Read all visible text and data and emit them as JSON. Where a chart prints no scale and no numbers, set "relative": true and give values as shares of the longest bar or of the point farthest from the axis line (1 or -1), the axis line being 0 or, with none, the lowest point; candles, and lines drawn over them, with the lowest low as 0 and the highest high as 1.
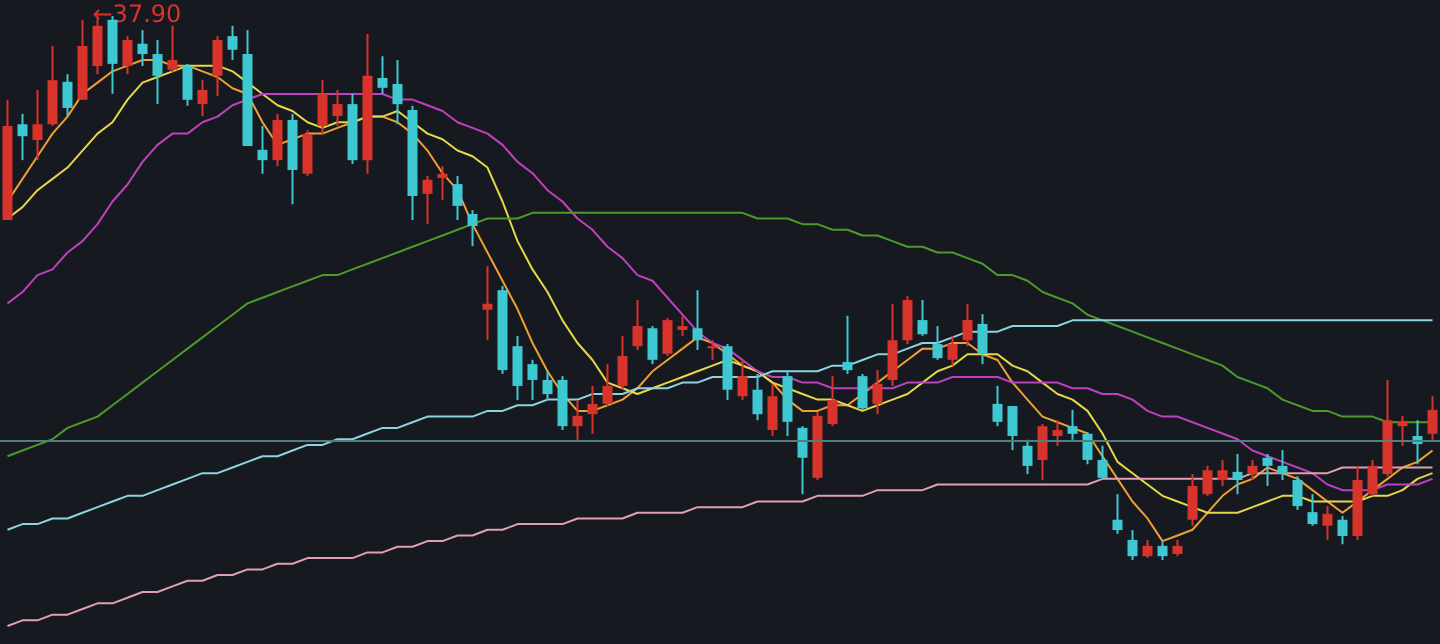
{
  "chart_data": [
    {
      "type": "candlestick",
      "relative": true,
      "categories": [
        null,
        null,
        null,
        null,
        null,
        null,
        null,
        null,
        null,
        null,
        null,
        null,
        null,
        null,
        null,
        null,
        null,
        null,
        null,
        null,
        null,
        null,
        null,
        null,
        null,
        null,
        null,
        null,
        null,
        null,
        null,
        null,
        null,
        null,
        null,
        null,
        null,
        null,
        null,
        null,
        null,
        null,
        null,
        null,
        null,
        null,
        null,
        null,
        null,
        null,
        null,
        null,
        null,
        null,
        null,
        null,
        null,
        null,
        null,
        null,
        null,
        null,
        null,
        null,
        null,
        null,
        null,
        null,
        null,
        null,
        null,
        null,
        null,
        null,
        null,
        null,
        null,
        null,
        null,
        null,
        null,
        null,
        null,
        null,
        null,
        null,
        null,
        null,
        null,
        null,
        null,
        null,
        null,
        null,
        null,
        null
      ],
      "ohlc": [
        [
          0.625,
          0.846,
          0.625,
          0.798
        ],
        [
          0.801,
          0.82,
          0.735,
          0.779
        ],
        [
          0.772,
          0.864,
          0.735,
          0.801
        ],
        [
          0.801,
          0.945,
          0.798,
          0.882
        ],
        [
          0.879,
          0.893,
          0.816,
          0.831
        ],
        [
          0.846,
          0.993,
          0.846,
          0.945
        ],
        [
          0.908,
          0.996,
          0.893,
          0.982
        ],
        [
          0.993,
          1,
          0.857,
          0.912
        ],
        [
          0.908,
          0.963,
          0.893,
          0.956
        ],
        [
          0.949,
          0.974,
          0.908,
          0.93
        ],
        [
          0.93,
          0.956,
          0.838,
          0.89
        ],
        [
          0.901,
          0.982,
          0.897,
          0.919
        ],
        [
          0.908,
          0.912,
          0.835,
          0.846
        ],
        [
          0.838,
          0.882,
          0.816,
          0.864
        ],
        [
          0.89,
          0.963,
          0.853,
          0.956
        ],
        [
          0.963,
          0.982,
          0.919,
          0.938
        ],
        [
          0.93,
          0.974,
          0.761,
          0.761
        ],
        [
          0.754,
          0.798,
          0.71,
          0.735
        ],
        [
          0.735,
          0.82,
          0.724,
          0.809
        ],
        [
          0.809,
          0.82,
          0.654,
          0.717
        ],
        [
          0.71,
          0.79,
          0.706,
          0.783
        ],
        [
          0.798,
          0.882,
          0.783,
          0.857
        ],
        [
          0.816,
          0.864,
          0.798,
          0.838
        ],
        [
          0.838,
          0.857,
          0.728,
          0.735
        ],
        [
          0.735,
          0.967,
          0.71,
          0.89
        ],
        [
          0.886,
          0.926,
          0.857,
          0.868
        ],
        [
          0.875,
          0.919,
          0.801,
          0.838
        ],
        [
          0.827,
          0.835,
          0.625,
          0.669
        ],
        [
          0.673,
          0.706,
          0.618,
          0.699
        ],
        [
          0.702,
          0.724,
          0.662,
          0.71
        ],
        [
          0.691,
          0.706,
          0.625,
          0.651
        ],
        [
          0.636,
          0.643,
          0.577,
          0.614
        ],
        [
          0.46,
          0.54,
          0.404,
          0.471
        ],
        [
          0.496,
          0.504,
          0.342,
          0.349
        ],
        [
          0.393,
          0.412,
          0.294,
          0.32
        ],
        [
          0.36,
          0.368,
          0.294,
          0.331
        ],
        [
          0.331,
          0.349,
          0.294,
          0.305
        ],
        [
          0.331,
          0.338,
          0.239,
          0.246
        ],
        [
          0.246,
          0.294,
          0.221,
          0.265
        ],
        [
          0.268,
          0.32,
          0.232,
          0.287
        ],
        [
          0.287,
          0.36,
          0.283,
          0.32
        ],
        [
          0.32,
          0.412,
          0.313,
          0.375
        ],
        [
          0.393,
          0.478,
          0.386,
          0.43
        ],
        [
          0.426,
          0.43,
          0.36,
          0.368
        ],
        [
          0.379,
          0.445,
          0.375,
          0.441
        ],
        [
          0.423,
          0.449,
          0.412,
          0.43
        ],
        [
          0.426,
          0.496,
          0.386,
          0.404
        ],
        [
          0.39,
          0.404,
          0.368,
          0.393
        ],
        [
          0.393,
          0.397,
          0.294,
          0.313
        ],
        [
          0.301,
          0.368,
          0.294,
          0.338
        ],
        [
          0.313,
          0.342,
          0.257,
          0.268
        ],
        [
          0.239,
          0.324,
          0.228,
          0.301
        ],
        [
          0.338,
          0.349,
          0.228,
          0.254
        ],
        [
          0.243,
          0.246,
          0.121,
          0.188
        ],
        [
          0.151,
          0.272,
          0.147,
          0.265
        ],
        [
          0.25,
          0.338,
          0.246,
          0.294
        ],
        [
          0.364,
          0.449,
          0.342,
          0.349
        ],
        [
          0.338,
          0.342,
          0.276,
          0.279
        ],
        [
          0.287,
          0.349,
          0.268,
          0.324
        ],
        [
          0.331,
          0.471,
          0.32,
          0.404
        ],
        [
          0.404,
          0.485,
          0.397,
          0.478
        ],
        [
          0.441,
          0.478,
          0.412,
          0.415
        ],
        [
          0.397,
          0.43,
          0.368,
          0.371
        ],
        [
          0.368,
          0.412,
          0.357,
          0.397
        ],
        [
          0.404,
          0.471,
          0.393,
          0.441
        ],
        [
          0.434,
          0.452,
          0.36,
          0.379
        ],
        [
          0.287,
          0.32,
          0.246,
          0.254
        ],
        [
          0.283,
          0.283,
          0.202,
          0.228
        ],
        [
          0.21,
          0.221,
          0.158,
          0.173
        ],
        [
          0.184,
          0.25,
          0.147,
          0.246
        ],
        [
          0.228,
          0.257,
          0.21,
          0.239
        ],
        [
          0.246,
          0.276,
          0.221,
          0.232
        ],
        [
          0.232,
          0.235,
          0.176,
          0.184
        ],
        [
          0.184,
          0.21,
          0.147,
          0.151
        ],
        [
          0.074,
          0.121,
          0.048,
          0.055
        ],
        [
          0.037,
          0.055,
          0,
          0.007
        ],
        [
          0.007,
          0.037,
          0.004,
          0.026
        ],
        [
          0.026,
          0.033,
          0,
          0.007
        ],
        [
          0.011,
          0.037,
          0.007,
          0.026
        ],
        [
          0.074,
          0.158,
          0.063,
          0.136
        ],
        [
          0.121,
          0.173,
          0.118,
          0.165
        ],
        [
          0.147,
          0.184,
          0.136,
          0.165
        ],
        [
          0.162,
          0.195,
          0.121,
          0.147
        ],
        [
          0.158,
          0.184,
          0.147,
          0.173
        ],
        [
          0.188,
          0.195,
          0.136,
          0.173
        ],
        [
          0.173,
          0.202,
          0.147,
          0.158
        ],
        [
          0.147,
          0.154,
          0.092,
          0.099
        ],
        [
          0.088,
          0.121,
          0.063,
          0.066
        ],
        [
          0.063,
          0.099,
          0.037,
          0.085
        ],
        [
          0.074,
          0.081,
          0.029,
          0.044
        ],
        [
          0.044,
          0.173,
          0.037,
          0.147
        ],
        [
          0.121,
          0.184,
          0.118,
          0.173
        ],
        [
          0.158,
          0.331,
          0.154,
          0.257
        ],
        [
          0.246,
          0.265,
          0.21,
          0.254
        ],
        [
          0.228,
          0.257,
          0.176,
          0.213
        ],
        [
          0.232,
          0.301,
          0.221,
          0.276
        ]
      ],
      "ref_lines": [
        {
          "axis": "y",
          "value": 0.224,
          "color": "#4f8080"
        }
      ],
      "annotations": [
        "←37.90"
      ]
    },
    {
      "type": "line",
      "relative": true,
      "categories": [
        null,
        null,
        null,
        null,
        null,
        null,
        null,
        null,
        null,
        null,
        null,
        null,
        null,
        null,
        null,
        null,
        null,
        null,
        null,
        null,
        null,
        null,
        null,
        null,
        null,
        null,
        null,
        null,
        null,
        null,
        null,
        null,
        null,
        null,
        null,
        null,
        null,
        null,
        null,
        null,
        null,
        null,
        null,
        null,
        null,
        null,
        null,
        null,
        null,
        null,
        null,
        null,
        null,
        null,
        null,
        null,
        null,
        null,
        null,
        null,
        null,
        null,
        null,
        null,
        null,
        null,
        null,
        null,
        null,
        null,
        null,
        null,
        null,
        null,
        null,
        null,
        null,
        null,
        null,
        null,
        null,
        null,
        null,
        null,
        null,
        null,
        null,
        null,
        null,
        null,
        null,
        null,
        null,
        null,
        null,
        null
      ],
      "series": [
        {
          "color": "#f0a030",
          "values": [
            0.75,
            0.79,
            0.83,
            0.87,
            0.9,
            0.94,
            0.96,
            0.98,
            0.99,
            1,
            1,
            0.99,
            0.99,
            0.98,
            0.97,
            0.95,
            0.94,
            0.89,
            0.85,
            0.86,
            0.87,
            0.87,
            0.88,
            0.89,
            0.9,
            0.9,
            0.89,
            0.87,
            0.84,
            0.8,
            0.77,
            0.71,
            0.66,
            0.61,
            0.56,
            0.5,
            0.45,
            0.41,
            0.38,
            0.38,
            0.39,
            0.4,
            0.42,
            0.45,
            0.47,
            0.49,
            0.51,
            0.5,
            0.48,
            0.46,
            0.45,
            0.43,
            0.4,
            0.38,
            0.38,
            0.39,
            0.39,
            0.41,
            0.43,
            0.45,
            0.47,
            0.49,
            0.49,
            0.5,
            0.5,
            0.48,
            0.47,
            0.43,
            0.4,
            0.37,
            0.36,
            0.35,
            0.34,
            0.3,
            0.26,
            0.22,
            0.19,
            0.15,
            0.16,
            0.17,
            0.2,
            0.23,
            0.25,
            0.26,
            0.28,
            0.27,
            0.26,
            0.24,
            0.22,
            0.2,
            0.22,
            0.24,
            0.26,
            0.28,
            0.29,
            0.31
          ]
        },
        {
          "color": "#e6d84a",
          "values": [
            0.72,
            0.74,
            0.77,
            0.79,
            0.81,
            0.84,
            0.87,
            0.89,
            0.93,
            0.96,
            0.97,
            0.98,
            0.99,
            0.99,
            0.99,
            0.98,
            0.96,
            0.94,
            0.92,
            0.91,
            0.89,
            0.88,
            0.89,
            0.89,
            0.9,
            0.9,
            0.91,
            0.89,
            0.87,
            0.86,
            0.84,
            0.83,
            0.81,
            0.75,
            0.68,
            0.63,
            0.59,
            0.54,
            0.5,
            0.47,
            0.43,
            0.42,
            0.41,
            0.42,
            0.43,
            0.44,
            0.45,
            0.46,
            0.47,
            0.46,
            0.45,
            0.43,
            0.42,
            0.41,
            0.4,
            0.4,
            0.39,
            0.38,
            0.39,
            0.4,
            0.41,
            0.43,
            0.45,
            0.46,
            0.48,
            0.48,
            0.48,
            0.46,
            0.45,
            0.43,
            0.41,
            0.4,
            0.38,
            0.34,
            0.29,
            0.27,
            0.25,
            0.23,
            0.22,
            0.21,
            0.2,
            0.2,
            0.2,
            0.21,
            0.22,
            0.23,
            0.23,
            0.22,
            0.22,
            0.22,
            0.22,
            0.23,
            0.23,
            0.24,
            0.26,
            0.27
          ]
        },
        {
          "color": "#c040c0",
          "values": [
            0.57,
            0.59,
            0.62,
            0.63,
            0.66,
            0.68,
            0.71,
            0.75,
            0.78,
            0.82,
            0.85,
            0.87,
            0.87,
            0.89,
            0.9,
            0.92,
            0.93,
            0.94,
            0.94,
            0.94,
            0.94,
            0.94,
            0.94,
            0.94,
            0.94,
            0.94,
            0.93,
            0.93,
            0.92,
            0.91,
            0.89,
            0.88,
            0.87,
            0.85,
            0.82,
            0.8,
            0.77,
            0.75,
            0.72,
            0.7,
            0.67,
            0.65,
            0.62,
            0.61,
            0.58,
            0.55,
            0.52,
            0.5,
            0.49,
            0.47,
            0.45,
            0.44,
            0.44,
            0.43,
            0.43,
            0.42,
            0.42,
            0.42,
            0.42,
            0.42,
            0.43,
            0.43,
            0.43,
            0.44,
            0.44,
            0.44,
            0.44,
            0.43,
            0.43,
            0.43,
            0.43,
            0.42,
            0.42,
            0.41,
            0.41,
            0.4,
            0.38,
            0.37,
            0.37,
            0.36,
            0.35,
            0.34,
            0.33,
            0.31,
            0.3,
            0.29,
            0.28,
            0.27,
            0.25,
            0.24,
            0.24,
            0.24,
            0.25,
            0.25,
            0.25,
            0.26
          ]
        },
        {
          "color": "#4c9a2a",
          "values": [
            0.3,
            0.31,
            0.32,
            0.33,
            0.35,
            0.36,
            0.37,
            0.39,
            0.41,
            0.43,
            0.45,
            0.47,
            0.49,
            0.51,
            0.53,
            0.55,
            0.57,
            0.58,
            0.59,
            0.6,
            0.61,
            0.62,
            0.62,
            0.63,
            0.64,
            0.65,
            0.66,
            0.67,
            0.68,
            0.69,
            0.7,
            0.71,
            0.72,
            0.72,
            0.72,
            0.73,
            0.73,
            0.73,
            0.73,
            0.73,
            0.73,
            0.73,
            0.73,
            0.73,
            0.73,
            0.73,
            0.73,
            0.73,
            0.73,
            0.73,
            0.72,
            0.72,
            0.72,
            0.71,
            0.71,
            0.7,
            0.7,
            0.69,
            0.69,
            0.68,
            0.67,
            0.67,
            0.66,
            0.66,
            0.65,
            0.64,
            0.62,
            0.62,
            0.61,
            0.59,
            0.58,
            0.57,
            0.55,
            0.54,
            0.53,
            0.52,
            0.51,
            0.5,
            0.49,
            0.48,
            0.47,
            0.46,
            0.44,
            0.43,
            0.42,
            0.4,
            0.39,
            0.38,
            0.38,
            0.37,
            0.37,
            0.37,
            0.36,
            0.36,
            0.36,
            0.36
          ]
        },
        {
          "color": "#8fd3e0",
          "values": [
            0.17,
            0.18,
            0.18,
            0.19,
            0.19,
            0.2,
            0.21,
            0.22,
            0.23,
            0.23,
            0.24,
            0.25,
            0.26,
            0.27,
            0.27,
            0.28,
            0.29,
            0.3,
            0.3,
            0.31,
            0.32,
            0.32,
            0.33,
            0.33,
            0.34,
            0.35,
            0.35,
            0.36,
            0.37,
            0.37,
            0.37,
            0.37,
            0.38,
            0.38,
            0.39,
            0.39,
            0.4,
            0.4,
            0.4,
            0.41,
            0.41,
            0.41,
            0.42,
            0.42,
            0.42,
            0.43,
            0.43,
            0.44,
            0.44,
            0.44,
            0.44,
            0.45,
            0.45,
            0.45,
            0.45,
            0.46,
            0.46,
            0.47,
            0.48,
            0.48,
            0.49,
            0.5,
            0.5,
            0.51,
            0.52,
            0.52,
            0.52,
            0.53,
            0.53,
            0.53,
            0.53,
            0.54,
            0.54,
            0.54,
            0.54,
            0.54,
            0.54,
            0.54,
            0.54,
            0.54,
            0.54,
            0.54,
            0.54,
            0.54,
            0.54,
            0.54,
            0.54,
            0.54,
            0.54,
            0.54,
            0.54,
            0.54,
            0.54,
            0.54,
            0.54,
            0.54
          ]
        },
        {
          "color": "#e0a0b0",
          "values": [
            0,
            0.01,
            0.01,
            0.02,
            0.02,
            0.03,
            0.04,
            0.04,
            0.05,
            0.06,
            0.06,
            0.07,
            0.08,
            0.08,
            0.09,
            0.09,
            0.1,
            0.1,
            0.11,
            0.11,
            0.12,
            0.12,
            0.12,
            0.12,
            0.13,
            0.13,
            0.14,
            0.14,
            0.15,
            0.15,
            0.16,
            0.16,
            0.17,
            0.17,
            0.18,
            0.18,
            0.18,
            0.18,
            0.19,
            0.19,
            0.19,
            0.19,
            0.2,
            0.2,
            0.2,
            0.2,
            0.21,
            0.21,
            0.21,
            0.21,
            0.22,
            0.22,
            0.22,
            0.22,
            0.23,
            0.23,
            0.23,
            0.23,
            0.24,
            0.24,
            0.24,
            0.24,
            0.25,
            0.25,
            0.25,
            0.25,
            0.25,
            0.25,
            0.25,
            0.25,
            0.25,
            0.25,
            0.25,
            0.26,
            0.26,
            0.26,
            0.26,
            0.26,
            0.26,
            0.26,
            0.26,
            0.26,
            0.26,
            0.27,
            0.27,
            0.27,
            0.27,
            0.27,
            0.27,
            0.28,
            0.28,
            0.28,
            0.28,
            0.28,
            0.28,
            0.28
          ]
        }
      ]
    }
  ]
}
